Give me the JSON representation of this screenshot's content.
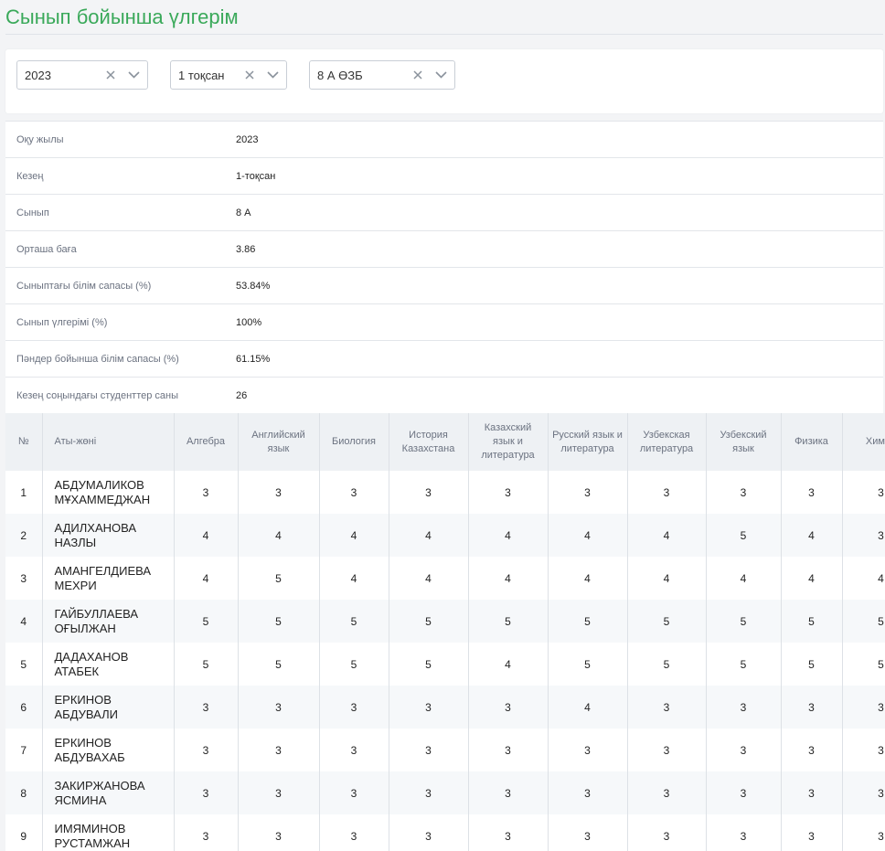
{
  "title": "Сынып бойынша үлгерім",
  "filters": {
    "year": "2023",
    "quarter": "1 тоқсан",
    "class": "8 А ӨЗБ"
  },
  "info": [
    {
      "label": "Оқу жылы",
      "value": "2023"
    },
    {
      "label": "Кезең",
      "value": "1-тоқсан"
    },
    {
      "label": "Сынып",
      "value": "8 А"
    },
    {
      "label": "Орташа баға",
      "value": "3.86"
    },
    {
      "label": "Сыныптағы білім сапасы (%)",
      "value": "53.84%"
    },
    {
      "label": "Сынып үлгерімі (%)",
      "value": "100%"
    },
    {
      "label": "Пәндер бойынша білім сапасы (%)",
      "value": "61.15%"
    },
    {
      "label": "Кезең соңындағы студенттер саны",
      "value": "26"
    }
  ],
  "table": {
    "headers": [
      "№",
      "Аты-жөні",
      "Алгебра",
      "Английский язык",
      "Биология",
      "История Казахстана",
      "Казахский язык и литература",
      "Русский язык и литература",
      "Узбекская литература",
      "Узбекский язык",
      "Физика",
      "Химия"
    ],
    "rows": [
      {
        "num": "1",
        "name": "АБДУМАЛИКОВ МҰХАММЕДЖАН",
        "grades": [
          "3",
          "3",
          "3",
          "3",
          "3",
          "3",
          "3",
          "3",
          "3",
          "3"
        ]
      },
      {
        "num": "2",
        "name": "АДИЛХАНОВА НАЗЛЫ",
        "grades": [
          "4",
          "4",
          "4",
          "4",
          "4",
          "4",
          "4",
          "5",
          "4",
          "3"
        ]
      },
      {
        "num": "3",
        "name": "АМАНГЕЛДИЕВА МЕХРИ",
        "grades": [
          "4",
          "5",
          "4",
          "4",
          "4",
          "4",
          "4",
          "4",
          "4",
          "4"
        ]
      },
      {
        "num": "4",
        "name": "ГАЙБУЛЛАЕВА ОҒЫЛЖАН",
        "grades": [
          "5",
          "5",
          "5",
          "5",
          "5",
          "5",
          "5",
          "5",
          "5",
          "5"
        ]
      },
      {
        "num": "5",
        "name": "ДАДАХАНОВ АТАБЕК",
        "grades": [
          "5",
          "5",
          "5",
          "5",
          "4",
          "5",
          "5",
          "5",
          "5",
          "5"
        ]
      },
      {
        "num": "6",
        "name": "ЕРКИНОВ АБДУВАЛИ",
        "grades": [
          "3",
          "3",
          "3",
          "3",
          "3",
          "4",
          "3",
          "3",
          "3",
          "3"
        ]
      },
      {
        "num": "7",
        "name": "ЕРКИНОВ АБДУВАХАБ",
        "grades": [
          "3",
          "3",
          "3",
          "3",
          "3",
          "3",
          "3",
          "3",
          "3",
          "3"
        ]
      },
      {
        "num": "8",
        "name": "ЗАКИРЖАНОВА ЯСМИНА",
        "grades": [
          "3",
          "3",
          "3",
          "3",
          "3",
          "3",
          "3",
          "3",
          "3",
          "3"
        ]
      },
      {
        "num": "9",
        "name": "ИМЯМИНОВ РУСТАМЖАН",
        "grades": [
          "3",
          "3",
          "3",
          "3",
          "3",
          "3",
          "3",
          "3",
          "3",
          "3"
        ]
      }
    ]
  }
}
